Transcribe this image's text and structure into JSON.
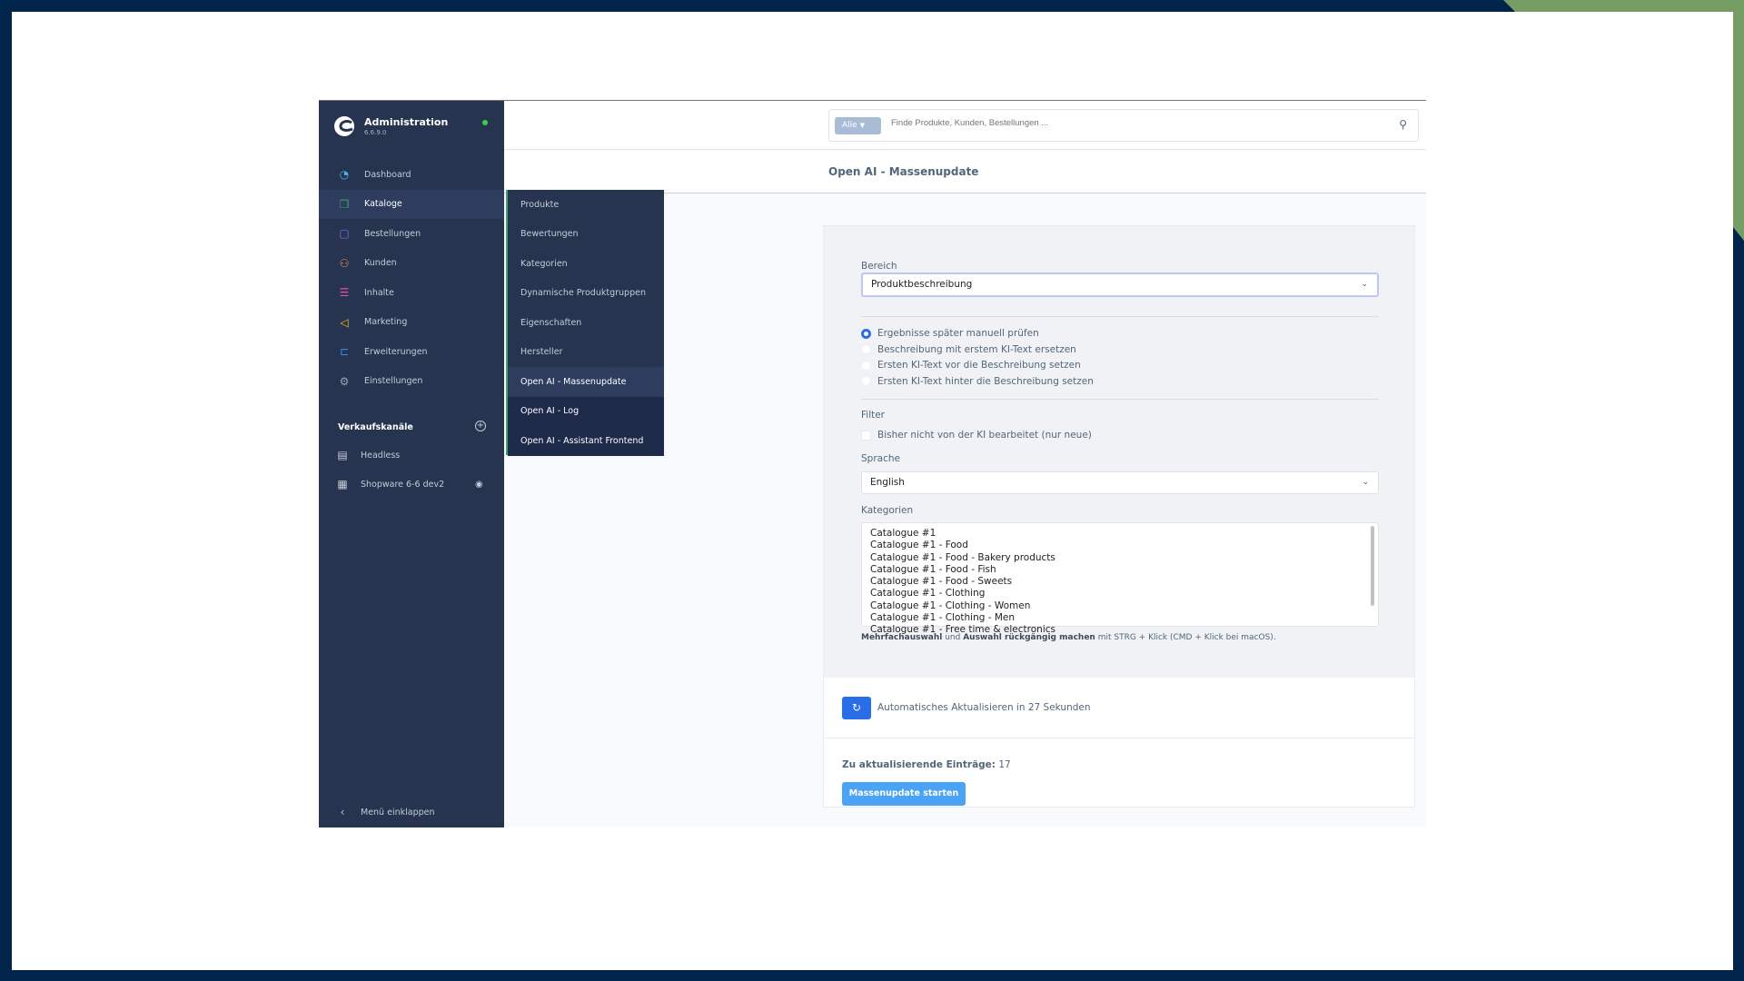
{
  "colors": {
    "frame": "#00244a",
    "frame_accent": "#769e64",
    "sidebar": "#27344f",
    "primary": "#2a6de8",
    "start_button": "#4aa3f5"
  },
  "sidebar": {
    "brand": "Administration",
    "version": "6.6.9.0",
    "items": [
      {
        "label": "Dashboard",
        "icon": "dashboard-gauge-icon"
      },
      {
        "label": "Kataloge",
        "icon": "catalog-icon",
        "active": true
      },
      {
        "label": "Bestellungen",
        "icon": "shopping-bag-icon"
      },
      {
        "label": "Kunden",
        "icon": "users-icon"
      },
      {
        "label": "Inhalte",
        "icon": "content-icon"
      },
      {
        "label": "Marketing",
        "icon": "megaphone-icon"
      },
      {
        "label": "Erweiterungen",
        "icon": "plug-icon"
      },
      {
        "label": "Einstellungen",
        "icon": "gear-icon"
      }
    ],
    "sales_channels_title": "Verkaufskanäle",
    "sales_channels": [
      {
        "label": "Headless",
        "icon": "headless-icon"
      },
      {
        "label": "Shopware 6-6 dev2",
        "icon": "storefront-icon"
      }
    ],
    "collapse_label": "Menü einklappen"
  },
  "submenu": {
    "items": [
      "Produkte",
      "Bewertungen",
      "Kategorien",
      "Dynamische Produktgruppen",
      "Eigenschaften",
      "Hersteller",
      "Open AI - Massenupdate",
      "Open AI - Log",
      "Open AI - Assistant Frontend"
    ],
    "active": "Open AI - Massenupdate"
  },
  "search": {
    "scope": "Alle",
    "placeholder": "Finde Produkte, Kunden, Bestellungen ..."
  },
  "page": {
    "title": "Open AI - Massenupdate"
  },
  "form": {
    "bereich_label": "Bereich",
    "bereich_value": "Produktbeschreibung",
    "radios": [
      "Ergebnisse später manuell prüfen",
      "Beschreibung mit erstem KI-Text ersetzen",
      "Ersten KI-Text vor die Beschreibung setzen",
      "Ersten KI-Text hinter die Beschreibung setzen"
    ],
    "radio_selected": 0,
    "filter_label": "Filter",
    "filter_checkbox": "Bisher nicht von der KI bearbeitet (nur neue)",
    "filter_checked": false,
    "sprache_label": "Sprache",
    "sprache_value": "English",
    "kategorien_label": "Kategorien",
    "kategorien": [
      "Catalogue #1",
      "Catalogue #1 - Food",
      "Catalogue #1 - Food - Bakery products",
      "Catalogue #1 - Food - Fish",
      "Catalogue #1 - Food - Sweets",
      "Catalogue #1 - Clothing",
      "Catalogue #1 - Clothing - Women",
      "Catalogue #1 - Clothing - Men",
      "Catalogue #1 - Free time & electronics"
    ],
    "help_bold1": "Mehrfachauswahl",
    "help_mid": " und ",
    "help_bold2": "Auswahl rückgängig machen",
    "help_rest": " mit STRG + Klick (CMD + Klick bei macOS)."
  },
  "refresh": {
    "text": "Automatisches Aktualisieren in 27 Sekunden"
  },
  "update": {
    "count_label": "Zu aktualisierende Einträge:",
    "count_value": " 17",
    "button": "Massenupdate starten"
  }
}
